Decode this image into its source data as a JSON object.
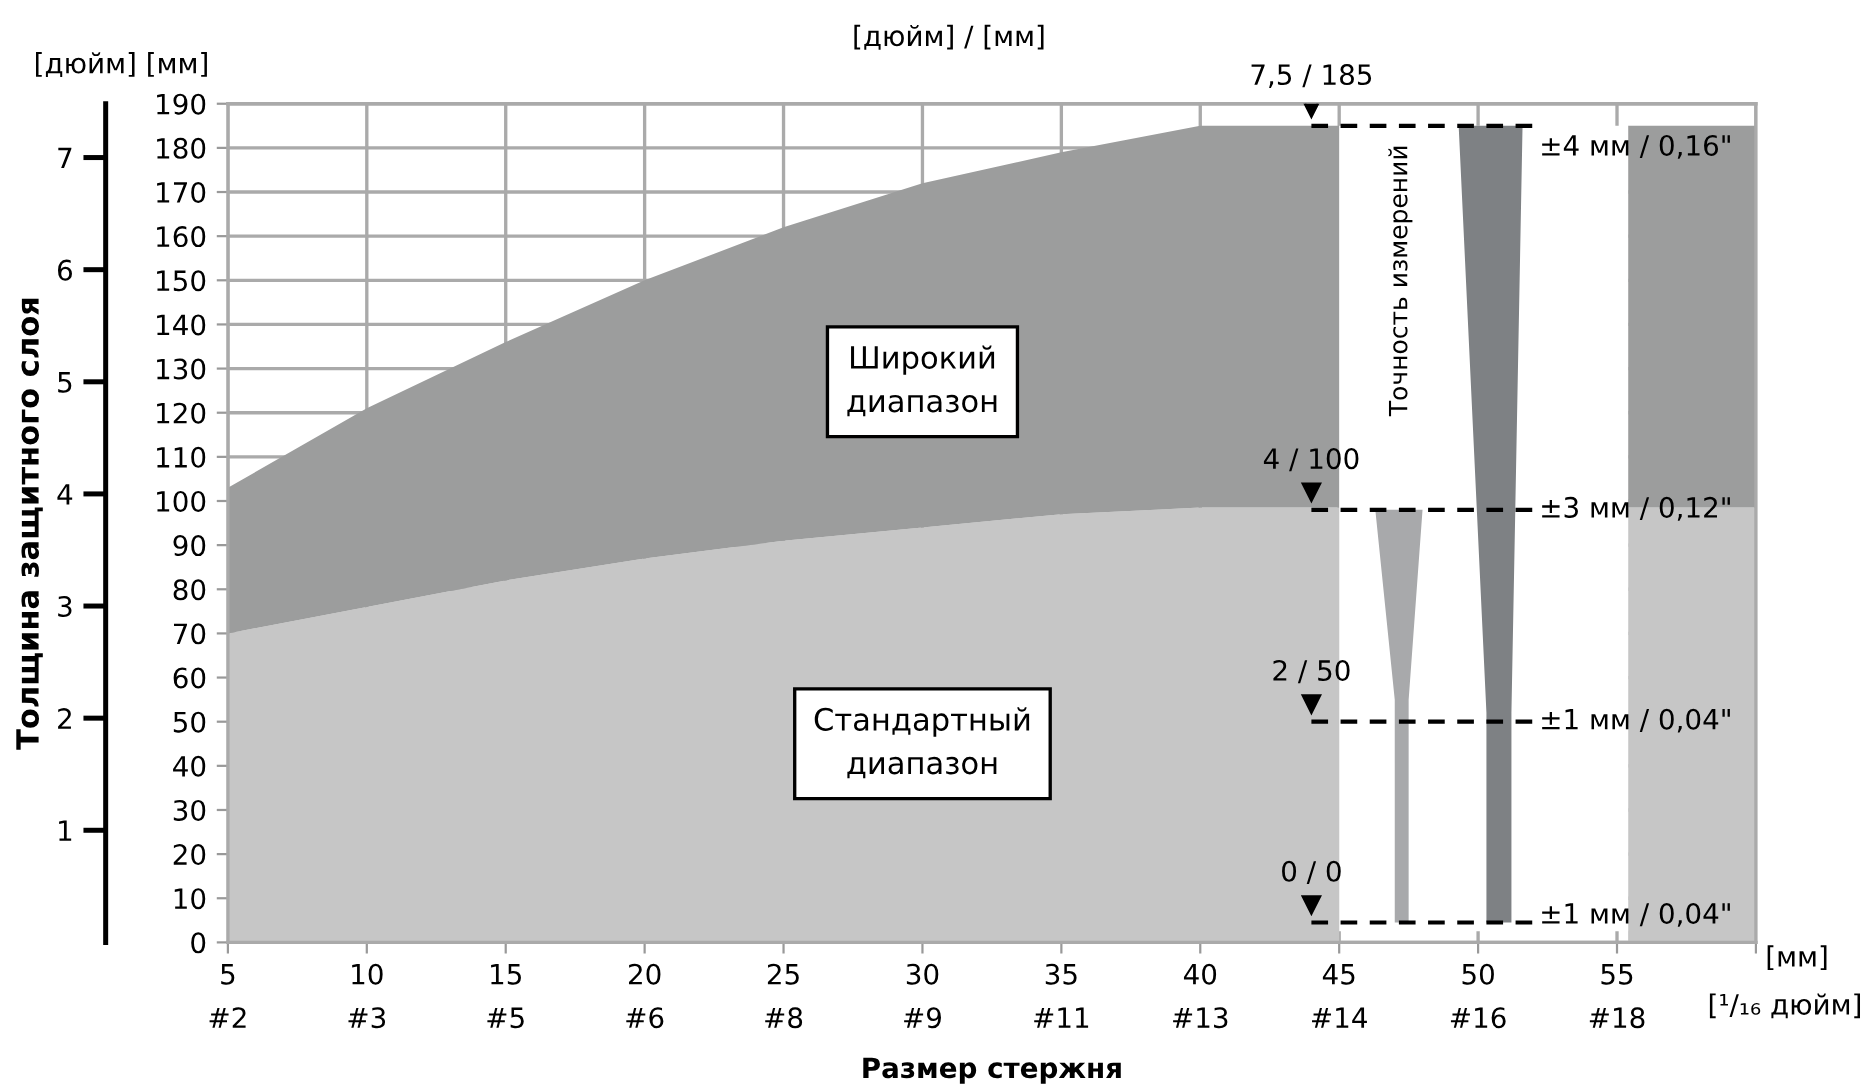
{
  "chart_data": {
    "type": "area",
    "stacked": true,
    "xlabel": "Размер стержня",
    "y2label": "Толщина защитного слоя",
    "x": [
      5,
      10,
      15,
      20,
      25,
      30,
      35,
      40,
      45,
      50,
      55.4,
      60
    ],
    "series": [
      {
        "name": "Стандартный\nдиапазон",
        "color": "#c6c6c6",
        "values": [
          70,
          76,
          82,
          87,
          91,
          94,
          97,
          98.5,
          98.5,
          null,
          98.5,
          98.5
        ]
      },
      {
        "name": "Широкий\nдиапазон",
        "color": "#9c9d9d",
        "values": [
          33,
          45,
          54,
          63,
          71,
          78,
          82,
          86.5,
          86.5,
          null,
          86.5,
          86.5
        ]
      }
    ],
    "xlim": [
      5,
      60
    ],
    "xticks": [
      5,
      10,
      15,
      20,
      25,
      30,
      35,
      40,
      45,
      50,
      55,
      {
        "value": 60,
        "label": null
      }
    ],
    "ylim": [
      0,
      190
    ],
    "yticks": [
      0,
      10,
      20,
      30,
      40,
      50,
      60,
      70,
      80,
      90,
      100,
      110,
      120,
      130,
      140,
      150,
      160,
      170,
      180,
      190
    ],
    "y2lim": [
      0,
      7.48
    ],
    "y2ticks": [
      1,
      2,
      3,
      4,
      5,
      6,
      7
    ],
    "grid": true,
    "annotations": [
      "[дюйм] [мм]",
      "[дюйм] / [мм]",
      "7,5 / 185",
      "4 / 100",
      "2 / 50",
      "0 / 0",
      "±4 мм / 0,16\"",
      "±3 мм / 0,12\"",
      "±1 мм / 0,04\"",
      "±1 мм / 0,04\"",
      "Точность измерений",
      "[мм]",
      "[¹/₁₆ дюйм]",
      "#2",
      "#3",
      "#5",
      "#6",
      "#8",
      "#9",
      "#11",
      "#13",
      "#14",
      "#16",
      "#18"
    ]
  }
}
